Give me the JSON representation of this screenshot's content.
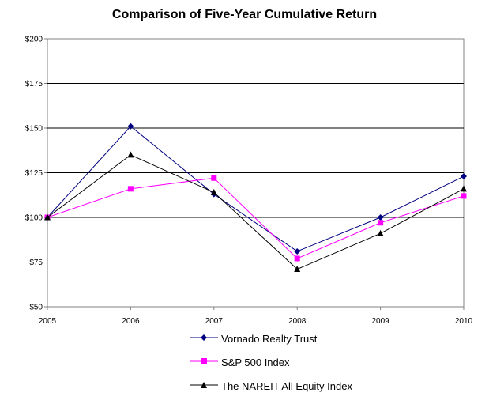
{
  "chart_data": {
    "type": "line",
    "title": "Comparison of Five-Year Cumulative Return",
    "xlabel": "",
    "ylabel": "",
    "categories": [
      "2005",
      "2006",
      "2007",
      "2008",
      "2009",
      "2010"
    ],
    "ylim": [
      50,
      200
    ],
    "yticks": [
      "$50",
      "$75",
      "$100",
      "$125",
      "$150",
      "$175",
      "$200"
    ],
    "grid": true,
    "legend_position": "bottom",
    "series": [
      {
        "name": "Vornado Realty Trust",
        "color": "#000080",
        "marker": "diamond",
        "values": [
          100,
          151,
          113,
          81,
          100,
          123
        ]
      },
      {
        "name": "S&P 500 Index",
        "color": "#FF00FF",
        "marker": "square",
        "values": [
          100,
          116,
          122,
          77,
          97,
          112
        ]
      },
      {
        "name": "The NAREIT  All Equity Index",
        "color": "#000000",
        "marker": "triangle",
        "values": [
          100,
          135,
          114,
          71,
          91,
          116
        ]
      }
    ]
  }
}
